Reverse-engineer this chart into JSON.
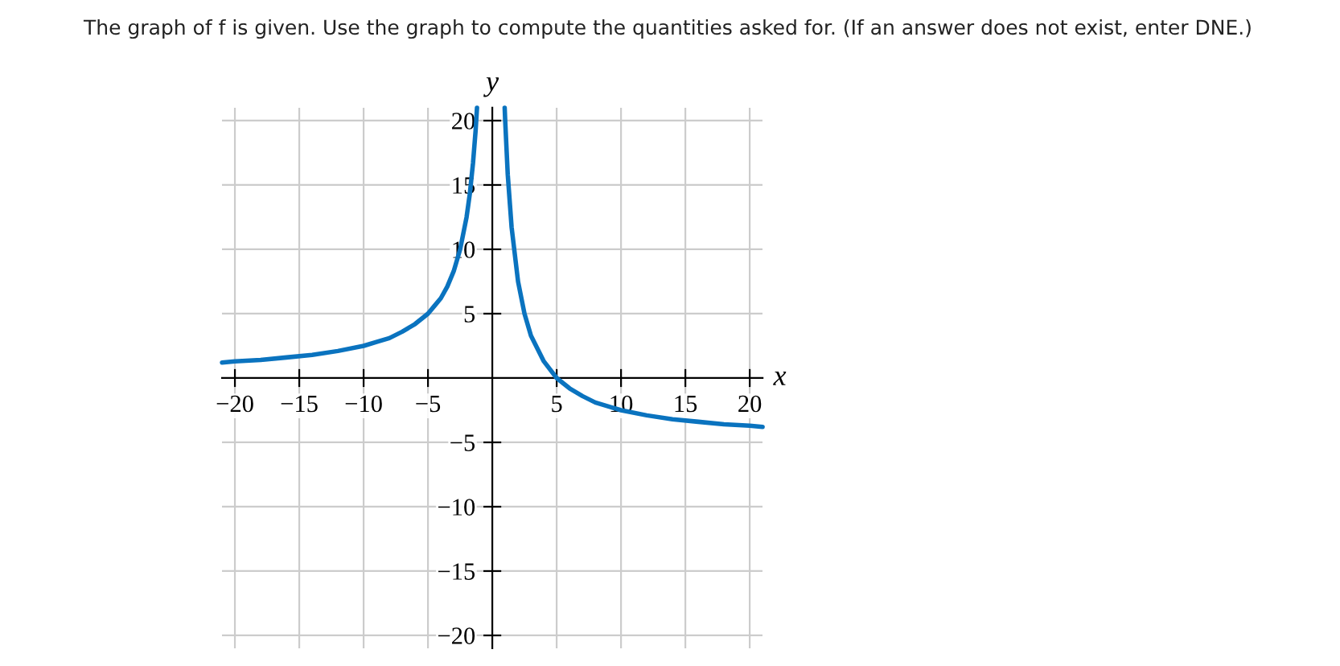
{
  "chart_data": {
    "type": "line",
    "title": "The graph of f is given. Use the graph to compute the quantities asked for. (If an answer does not exist, enter DNE.)",
    "xlabel": "x",
    "ylabel": "y",
    "series": [
      {
        "color": "#0a73bf",
        "x": [
          -21,
          -20,
          -18,
          -16,
          -14,
          -12,
          -10,
          -9,
          -8,
          -7,
          -6,
          -5,
          -4.5,
          -4,
          -3.5,
          -3,
          -2.5,
          -2,
          -1.75,
          -1.5,
          -1.3,
          -1.19
        ],
        "values": [
          1.2,
          1.3,
          1.4,
          1.6,
          1.8,
          2.1,
          2.5,
          2.8,
          3.1,
          3.6,
          4.2,
          5,
          5.6,
          6.2,
          7.1,
          8.3,
          10,
          12.5,
          14.3,
          16.7,
          19.2,
          21
        ]
      },
      {
        "color": "#0a73bf",
        "x": [
          0.96,
          1,
          1.2,
          1.5,
          2,
          2.5,
          3,
          4,
          5,
          6,
          7,
          8,
          10,
          12,
          14,
          16,
          18,
          20,
          21
        ],
        "values": [
          21,
          20,
          15.8,
          11.7,
          7.5,
          5,
          3.3,
          1.3,
          0,
          -0.8,
          -1.4,
          -1.9,
          -2.5,
          -2.9,
          -3.2,
          -3.4,
          -3.6,
          -3.7,
          -3.8
        ]
      }
    ],
    "xlim": [
      -21,
      21
    ],
    "ylim": [
      -21,
      21
    ],
    "xticks": [
      {
        "value": -20,
        "label": "−20"
      },
      {
        "value": -15,
        "label": "−15"
      },
      {
        "value": -10,
        "label": "−10"
      },
      {
        "value": -5,
        "label": "−5"
      },
      5,
      10,
      15,
      20
    ],
    "yticks": [
      {
        "value": -20,
        "label": "−20"
      },
      {
        "value": -15,
        "label": "−15"
      },
      {
        "value": -10,
        "label": "−10"
      },
      {
        "value": -5,
        "label": "−5"
      },
      5,
      10,
      15,
      20
    ],
    "grid": true,
    "marker": "none",
    "line_style": "solid"
  }
}
